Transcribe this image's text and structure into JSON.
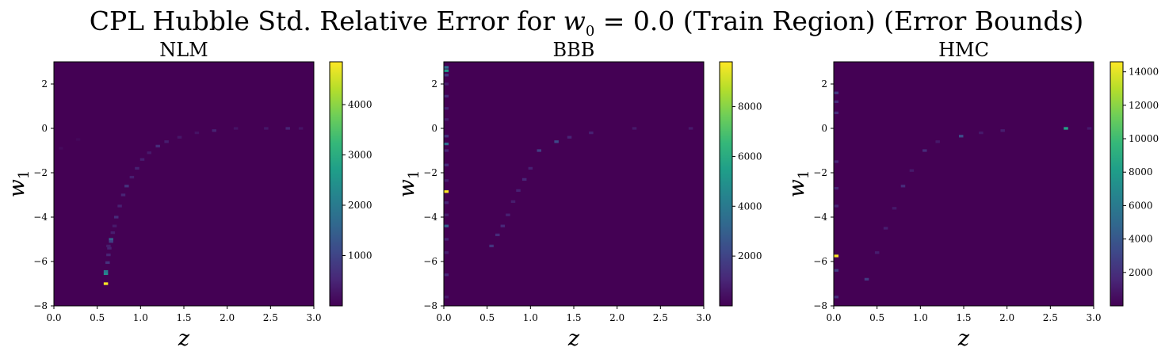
{
  "title_parts": {
    "pre": "CPL Hubble Std. Relative Error for ",
    "var": "w",
    "sub": "0",
    "post": " = 0.0 (Train Region) (Error Bounds)"
  },
  "colors": {
    "background_cell": "#440154",
    "viridis": [
      "#440154",
      "#482878",
      "#3e4989",
      "#31688e",
      "#26828e",
      "#1f9e89",
      "#35b779",
      "#6ece58",
      "#b5de2b",
      "#fde725"
    ]
  },
  "chart_data": [
    {
      "type": "heatmap",
      "title": "NLM",
      "xlabel": "z",
      "ylabel_var": "w",
      "ylabel_sub": "1",
      "xlim": [
        0.0,
        3.0
      ],
      "ylim": [
        -8,
        3
      ],
      "xticks": [
        "0.0",
        "0.5",
        "1.0",
        "1.5",
        "2.0",
        "2.5",
        "3.0"
      ],
      "yticks": [
        "2",
        "0",
        "−2",
        "−4",
        "−6",
        "−8"
      ],
      "colorbar": {
        "min": 0,
        "max": 4850,
        "ticks": [
          "1000",
          "2000",
          "3000",
          "4000"
        ]
      },
      "cells": [
        {
          "z": 0.08,
          "w1": -0.9,
          "v": 120
        },
        {
          "z": 0.28,
          "w1": -0.5,
          "v": 90
        },
        {
          "z": 0.6,
          "w1": -7.0,
          "v": 4850
        },
        {
          "z": 0.6,
          "w1": -6.55,
          "v": 2300
        },
        {
          "z": 0.6,
          "w1": -6.45,
          "v": 1900
        },
        {
          "z": 0.62,
          "w1": -6.05,
          "v": 700
        },
        {
          "z": 0.63,
          "w1": -5.7,
          "v": 500
        },
        {
          "z": 0.64,
          "w1": -5.4,
          "v": 450
        },
        {
          "z": 0.63,
          "w1": -5.3,
          "v": 380
        },
        {
          "z": 0.66,
          "w1": -5.0,
          "v": 1500
        },
        {
          "z": 0.66,
          "w1": -5.1,
          "v": 900
        },
        {
          "z": 0.68,
          "w1": -4.7,
          "v": 400
        },
        {
          "z": 0.7,
          "w1": -4.4,
          "v": 350
        },
        {
          "z": 0.72,
          "w1": -4.0,
          "v": 600
        },
        {
          "z": 0.76,
          "w1": -3.5,
          "v": 450
        },
        {
          "z": 0.8,
          "w1": -3.0,
          "v": 500
        },
        {
          "z": 0.84,
          "w1": -2.6,
          "v": 700
        },
        {
          "z": 0.9,
          "w1": -2.2,
          "v": 400
        },
        {
          "z": 0.96,
          "w1": -1.8,
          "v": 450
        },
        {
          "z": 1.02,
          "w1": -1.4,
          "v": 400
        },
        {
          "z": 1.1,
          "w1": -1.1,
          "v": 350
        },
        {
          "z": 1.2,
          "w1": -0.8,
          "v": 600
        },
        {
          "z": 1.3,
          "w1": -0.6,
          "v": 400
        },
        {
          "z": 1.45,
          "w1": -0.4,
          "v": 300
        },
        {
          "z": 1.65,
          "w1": -0.2,
          "v": 250
        },
        {
          "z": 1.85,
          "w1": -0.1,
          "v": 450
        },
        {
          "z": 2.1,
          "w1": 0.0,
          "v": 250
        },
        {
          "z": 2.45,
          "w1": 0.0,
          "v": 300
        },
        {
          "z": 2.7,
          "w1": 0.0,
          "v": 500
        },
        {
          "z": 2.85,
          "w1": 0.0,
          "v": 250
        }
      ]
    },
    {
      "type": "heatmap",
      "title": "BBB",
      "xlabel": "z",
      "ylabel_var": "w",
      "ylabel_sub": "1",
      "xlim": [
        0.0,
        3.0
      ],
      "ylim": [
        -8,
        3
      ],
      "xticks": [
        "0.0",
        "0.5",
        "1.0",
        "1.5",
        "2.0",
        "2.5",
        "3.0"
      ],
      "yticks": [
        "2",
        "0",
        "−2",
        "−4",
        "−6",
        "−8"
      ],
      "colorbar": {
        "min": 0,
        "max": 9800,
        "ticks": [
          "2000",
          "4000",
          "6000",
          "8000"
        ]
      },
      "cells": [
        {
          "z": 0.03,
          "w1": 2.75,
          "v": 3500
        },
        {
          "z": 0.03,
          "w1": 2.6,
          "v": 5500
        },
        {
          "z": 0.03,
          "w1": 2.4,
          "v": 1500
        },
        {
          "z": 0.03,
          "w1": 2.0,
          "v": 800
        },
        {
          "z": 0.03,
          "w1": 1.45,
          "v": 1200
        },
        {
          "z": 0.03,
          "w1": 0.9,
          "v": 900
        },
        {
          "z": 0.03,
          "w1": 0.4,
          "v": 700
        },
        {
          "z": 0.03,
          "w1": -0.35,
          "v": 1500
        },
        {
          "z": 0.03,
          "w1": -0.7,
          "v": 3500
        },
        {
          "z": 0.03,
          "w1": -1.0,
          "v": 1000
        },
        {
          "z": 0.03,
          "w1": -1.65,
          "v": 1200
        },
        {
          "z": 0.03,
          "w1": -2.35,
          "v": 800
        },
        {
          "z": 0.03,
          "w1": -2.85,
          "v": 9800
        },
        {
          "z": 0.03,
          "w1": -3.35,
          "v": 1000
        },
        {
          "z": 0.03,
          "w1": -3.9,
          "v": 800
        },
        {
          "z": 0.03,
          "w1": -4.4,
          "v": 3000
        },
        {
          "z": 0.03,
          "w1": -5.0,
          "v": 900
        },
        {
          "z": 0.03,
          "w1": -5.6,
          "v": 800
        },
        {
          "z": 0.03,
          "w1": -6.6,
          "v": 1100
        },
        {
          "z": 0.03,
          "w1": -7.6,
          "v": 700
        },
        {
          "z": 0.55,
          "w1": -5.3,
          "v": 1500
        },
        {
          "z": 0.62,
          "w1": -4.8,
          "v": 1200
        },
        {
          "z": 0.68,
          "w1": -4.4,
          "v": 1100
        },
        {
          "z": 0.74,
          "w1": -3.9,
          "v": 900
        },
        {
          "z": 0.8,
          "w1": -3.3,
          "v": 800
        },
        {
          "z": 0.86,
          "w1": -2.8,
          "v": 900
        },
        {
          "z": 0.93,
          "w1": -2.3,
          "v": 1100
        },
        {
          "z": 1.0,
          "w1": -1.8,
          "v": 900
        },
        {
          "z": 1.1,
          "w1": -1.0,
          "v": 1800
        },
        {
          "z": 1.3,
          "w1": -0.6,
          "v": 2200
        },
        {
          "z": 1.45,
          "w1": -0.4,
          "v": 1000
        },
        {
          "z": 1.7,
          "w1": -0.2,
          "v": 900
        },
        {
          "z": 2.2,
          "w1": 0.0,
          "v": 700
        },
        {
          "z": 2.85,
          "w1": 0.0,
          "v": 700
        }
      ]
    },
    {
      "type": "heatmap",
      "title": "HMC",
      "xlabel": "z",
      "ylabel_var": "w",
      "ylabel_sub": "1",
      "xlim": [
        0.0,
        3.0
      ],
      "ylim": [
        -8,
        3
      ],
      "xticks": [
        "0.0",
        "0.5",
        "1.0",
        "1.5",
        "2.0",
        "2.5",
        "3.0"
      ],
      "yticks": [
        "2",
        "0",
        "−2",
        "−4",
        "−6",
        "−8"
      ],
      "colorbar": {
        "min": 0,
        "max": 14600,
        "ticks": [
          "2000",
          "4000",
          "6000",
          "8000",
          "10000",
          "12000",
          "14000"
        ]
      },
      "cells": [
        {
          "z": 0.03,
          "w1": 1.6,
          "v": 2500
        },
        {
          "z": 0.03,
          "w1": 1.2,
          "v": 1800
        },
        {
          "z": 0.03,
          "w1": 0.7,
          "v": 1800
        },
        {
          "z": 0.03,
          "w1": -1.5,
          "v": 1500
        },
        {
          "z": 0.03,
          "w1": -2.7,
          "v": 1500
        },
        {
          "z": 0.03,
          "w1": -3.5,
          "v": 1500
        },
        {
          "z": 0.03,
          "w1": -5.75,
          "v": 14600
        },
        {
          "z": 0.03,
          "w1": -6.4,
          "v": 2500
        },
        {
          "z": 0.03,
          "w1": -7.6,
          "v": 2000
        },
        {
          "z": 0.38,
          "w1": -6.8,
          "v": 2500
        },
        {
          "z": 0.5,
          "w1": -5.6,
          "v": 1200
        },
        {
          "z": 0.6,
          "w1": -4.5,
          "v": 1200
        },
        {
          "z": 0.7,
          "w1": -3.6,
          "v": 1000
        },
        {
          "z": 0.8,
          "w1": -2.6,
          "v": 1800
        },
        {
          "z": 0.9,
          "w1": -1.9,
          "v": 1000
        },
        {
          "z": 1.05,
          "w1": -1.0,
          "v": 1800
        },
        {
          "z": 1.2,
          "w1": -0.6,
          "v": 1000
        },
        {
          "z": 1.47,
          "w1": -0.35,
          "v": 3500
        },
        {
          "z": 1.7,
          "w1": -0.2,
          "v": 1000
        },
        {
          "z": 1.95,
          "w1": -0.1,
          "v": 1200
        },
        {
          "z": 2.68,
          "w1": 0.0,
          "v": 8500
        },
        {
          "z": 2.95,
          "w1": 0.0,
          "v": 1000
        }
      ]
    }
  ]
}
